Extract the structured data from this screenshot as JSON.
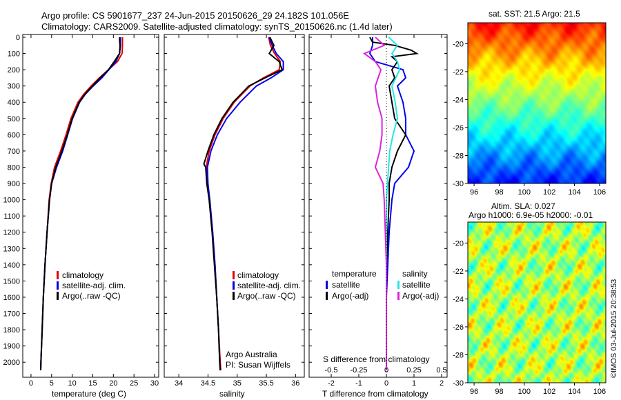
{
  "title": {
    "line1": "Argo profile: CS 5901677_237 24-Jun-2015 20150626_29 24.182S 101.056E",
    "line2": "Climatology: CARS2009. Satellite-adjusted climatology: synTS_20150626.nc (1.4d later)"
  },
  "legend_temp": [
    "climatology",
    "satellite-adj. clim.",
    "Argo(..raw -QC)"
  ],
  "legend_sal": [
    "climatology",
    "satellite-adj. clim.",
    "Argo(..raw -QC)"
  ],
  "credit": {
    "line1": "Argo Australia",
    "line2": "PI: Susan Wijffels"
  },
  "diff_legend": {
    "temp_title": "temperature",
    "sal_title": "salinity",
    "temp_sat": "satellite",
    "temp_argo": "Argo(-adj)",
    "sal_sat": "satellite",
    "sal_argo": "Argo(-adj)"
  },
  "map_sst_title": "sat. SST: 21.5 Argo: 21.5",
  "map_sla_title1": "Altim. SLA: 0.027",
  "map_sla_title2": "Argo h1000: 6.9e-05 h2000: -0.01",
  "stamp": "©IMOS 03-Jul-2015 20:38:53",
  "colors": {
    "climatology": "#e00000",
    "satellite_adj": "#0000ee",
    "argo": "#000000",
    "temp_satellite": "#0000ee",
    "temp_argo": "#000000",
    "sal_satellite": "#22e6e6",
    "sal_argo": "#dd22dd"
  },
  "chart_data": [
    {
      "type": "line",
      "xlabel": "temperature (deg C)",
      "ylabel": "",
      "xlim": [
        -2,
        31
      ],
      "ylim": [
        2080,
        0
      ],
      "xticks": [
        "0",
        "5",
        "10",
        "15",
        "20",
        "25",
        "30"
      ],
      "yticks": [
        "0",
        "100",
        "200",
        "300",
        "400",
        "500",
        "600",
        "700",
        "800",
        "900",
        "1000",
        "1100",
        "1200",
        "1300",
        "1400",
        "1500",
        "1600",
        "1700",
        "1800",
        "1900",
        "2000"
      ],
      "series": [
        {
          "name": "climatology",
          "depth": [
            0,
            50,
            100,
            150,
            200,
            250,
            300,
            350,
            400,
            500,
            600,
            700,
            800,
            900,
            1000,
            1200,
            1400,
            1600,
            1800,
            2000,
            2050
          ],
          "values": [
            22.2,
            22.2,
            22.1,
            21.0,
            18.8,
            16.6,
            14.6,
            12.8,
            11.4,
            9.7,
            8.5,
            7.2,
            5.7,
            4.9,
            4.4,
            3.9,
            3.4,
            3.0,
            2.7,
            2.4,
            2.35
          ]
        },
        {
          "name": "satellite-adj. clim.",
          "depth": [
            0,
            50,
            100,
            150,
            200,
            250,
            300,
            350,
            400,
            500,
            600,
            700,
            800,
            900,
            1000,
            1200,
            1400,
            1600,
            1800,
            2000,
            2050
          ],
          "values": [
            21.7,
            21.7,
            21.5,
            20.6,
            18.9,
            17.2,
            15.1,
            13.2,
            11.8,
            10.1,
            8.9,
            7.7,
            6.2,
            5.0,
            4.5,
            3.9,
            3.4,
            3.0,
            2.7,
            2.4,
            2.35
          ]
        },
        {
          "name": "Argo(..raw -QC)",
          "depth": [
            0,
            20,
            50,
            100,
            150,
            200,
            250,
            300,
            350,
            400,
            500,
            600,
            700,
            800,
            900,
            1000,
            1200,
            1400,
            1600,
            1800,
            2000,
            2050
          ],
          "values": [
            21.5,
            21.5,
            21.6,
            21.5,
            20.2,
            18.8,
            16.8,
            14.9,
            13.1,
            11.7,
            10.0,
            8.8,
            7.5,
            6.0,
            5.0,
            4.5,
            3.9,
            3.4,
            3.0,
            2.7,
            2.4,
            2.35
          ]
        }
      ]
    },
    {
      "type": "line",
      "xlabel": "salinity",
      "ylabel": "",
      "xlim": [
        33.75,
        36.15
      ],
      "ylim": [
        2080,
        0
      ],
      "xticks": [
        "34",
        "34.5",
        "35",
        "35.5",
        "36"
      ],
      "series": [
        {
          "name": "climatology",
          "depth": [
            0,
            50,
            100,
            150,
            200,
            250,
            300,
            400,
            500,
            600,
            700,
            800,
            900,
            1000,
            1200,
            1400,
            1600,
            1800,
            2000,
            2050
          ],
          "values": [
            35.54,
            35.57,
            35.64,
            35.74,
            35.72,
            35.45,
            35.22,
            34.95,
            34.76,
            34.62,
            34.52,
            34.47,
            34.49,
            34.53,
            34.58,
            34.62,
            34.65,
            34.68,
            34.71,
            34.72
          ]
        },
        {
          "name": "satellite-adj. clim.",
          "depth": [
            0,
            50,
            100,
            150,
            200,
            250,
            300,
            400,
            500,
            600,
            700,
            800,
            900,
            1000,
            1200,
            1400,
            1600,
            1800,
            2000,
            2050
          ],
          "values": [
            35.55,
            35.6,
            35.67,
            35.79,
            35.79,
            35.58,
            35.33,
            35.05,
            34.82,
            34.66,
            34.55,
            34.49,
            34.5,
            34.53,
            34.58,
            34.62,
            34.65,
            34.68,
            34.7,
            34.71
          ]
        },
        {
          "name": "Argo(..raw -QC)",
          "depth": [
            0,
            50,
            100,
            150,
            200,
            250,
            300,
            400,
            500,
            600,
            700,
            780,
            800,
            900,
            1000,
            1200,
            1400,
            1600,
            1800,
            2000,
            2050
          ],
          "values": [
            35.56,
            35.63,
            35.55,
            35.72,
            35.77,
            35.48,
            35.2,
            34.93,
            34.74,
            34.6,
            34.5,
            34.43,
            34.46,
            34.48,
            34.52,
            34.57,
            34.61,
            34.65,
            34.68,
            34.7,
            34.71
          ]
        }
      ]
    },
    {
      "type": "line",
      "xlabel": "T difference from climatology",
      "xlabel_top": "S difference from climatology",
      "ylabel": "",
      "xlim": [
        -2.8,
        2.2
      ],
      "ylim": [
        2080,
        0
      ],
      "xticks": [
        "-2",
        "-1",
        "0",
        "1",
        "2"
      ],
      "xticks_top": [
        "-0.5",
        "-0.25",
        "0",
        "0.25",
        "0.5"
      ],
      "series": [
        {
          "name": "temperature satellite",
          "depth": [
            0,
            50,
            100,
            150,
            200,
            250,
            300,
            400,
            500,
            600,
            700,
            800,
            900,
            1000,
            1200,
            1400,
            1600,
            1800,
            2000,
            2050
          ],
          "values": [
            -0.5,
            -0.5,
            -0.6,
            -0.4,
            0.6,
            0.7,
            0.4,
            0.6,
            0.7,
            0.7,
            1.0,
            0.8,
            0.3,
            0.2,
            0.1,
            0.05,
            0.0,
            0.0,
            0.0,
            0.0
          ]
        },
        {
          "name": "temperature Argo(-adj)",
          "depth": [
            0,
            30,
            50,
            80,
            100,
            120,
            150,
            200,
            250,
            300,
            400,
            500,
            600,
            700,
            800,
            900,
            1000,
            1200,
            1400,
            1600,
            1800,
            2000,
            2050
          ],
          "values": [
            -0.6,
            -0.5,
            0.3,
            0.9,
            1.1,
            0.2,
            0.4,
            0.2,
            0.3,
            0.1,
            0.2,
            0.3,
            0.7,
            0.4,
            0.2,
            0.1,
            0.1,
            0.05,
            0.0,
            0.0,
            0.0,
            0.0,
            0.0
          ]
        },
        {
          "name": "salinity satellite",
          "depth": [
            0,
            50,
            100,
            150,
            200,
            300,
            400,
            500,
            600,
            700,
            800,
            900,
            1000,
            1200,
            1400,
            1600,
            1800,
            2000,
            2050
          ],
          "values": [
            0.02,
            0.1,
            0.05,
            0.1,
            0.12,
            0.05,
            0.08,
            0.1,
            0.06,
            0.03,
            0.02,
            0.01,
            0.0,
            0.0,
            0.0,
            0.0,
            0.0,
            0.0,
            0.0
          ]
        },
        {
          "name": "salinity Argo(-adj)",
          "depth": [
            0,
            50,
            100,
            150,
            200,
            300,
            400,
            500,
            600,
            700,
            800,
            900,
            1000,
            1200,
            1400,
            1600,
            1800,
            2000,
            2050
          ],
          "values": [
            -0.1,
            -0.02,
            -0.2,
            -0.1,
            -0.05,
            -0.1,
            -0.08,
            -0.04,
            -0.04,
            -0.06,
            -0.1,
            -0.03,
            -0.02,
            -0.01,
            0.0,
            0.0,
            0.0,
            0.0,
            0.0
          ]
        }
      ]
    },
    {
      "type": "heatmap",
      "title": "sat. SST: 21.5 Argo: 21.5",
      "xlim": [
        95.5,
        106.5
      ],
      "ylim": [
        -30,
        -18.5
      ],
      "xticks": [
        "96",
        "98",
        "100",
        "102",
        "104",
        "106"
      ],
      "yticks": [
        "-20",
        "-22",
        "-24",
        "-26",
        "-28",
        "-30"
      ]
    },
    {
      "type": "heatmap",
      "title": "Altim. SLA: 0.027",
      "subtitle": "Argo h1000: 6.9e-05 h2000: -0.01",
      "xlim": [
        95.5,
        106.5
      ],
      "ylim": [
        -30,
        -18.5
      ],
      "xticks": [
        "96",
        "98",
        "100",
        "102",
        "104",
        "106"
      ],
      "yticks": [
        "-20",
        "-22",
        "-24",
        "-26",
        "-28",
        "-30"
      ]
    }
  ]
}
